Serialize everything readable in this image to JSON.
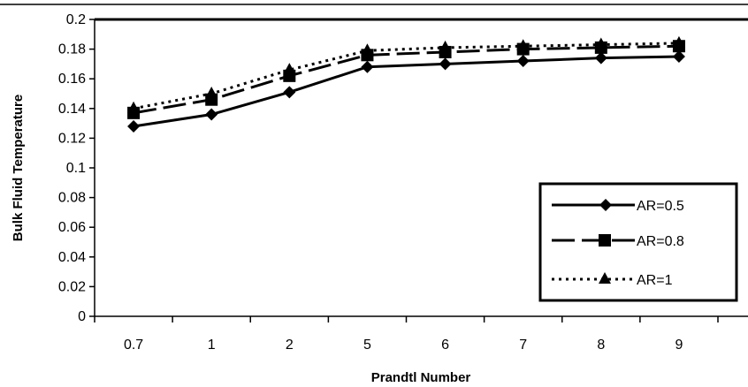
{
  "chart_data": {
    "type": "line",
    "categories": [
      "0.7",
      "1",
      "2",
      "5",
      "6",
      "7",
      "8",
      "9"
    ],
    "series": [
      {
        "name": "AR=0.5",
        "values": [
          0.128,
          0.136,
          0.151,
          0.168,
          0.17,
          0.172,
          0.174,
          0.175
        ],
        "marker": "diamond",
        "line_style": "solid"
      },
      {
        "name": "AR=0.8",
        "values": [
          0.137,
          0.146,
          0.162,
          0.176,
          0.178,
          0.18,
          0.181,
          0.182
        ],
        "marker": "square",
        "line_style": "dashed"
      },
      {
        "name": "AR=1",
        "values": [
          0.14,
          0.15,
          0.166,
          0.179,
          0.181,
          0.182,
          0.183,
          0.184
        ],
        "marker": "triangle",
        "line_style": "dotted"
      }
    ],
    "xlabel": "Prandtl Number",
    "ylabel": "Bulk Fluid Temperature",
    "ylim": [
      0,
      0.2
    ],
    "yticks": [
      "0",
      "0.02",
      "0.04",
      "0.06",
      "0.08",
      "0.1",
      "0.12",
      "0.14",
      "0.16",
      "0.18",
      "0.2"
    ],
    "legend_position": "bottom-right",
    "grid": false,
    "colors": {
      "series": "#000000"
    }
  }
}
